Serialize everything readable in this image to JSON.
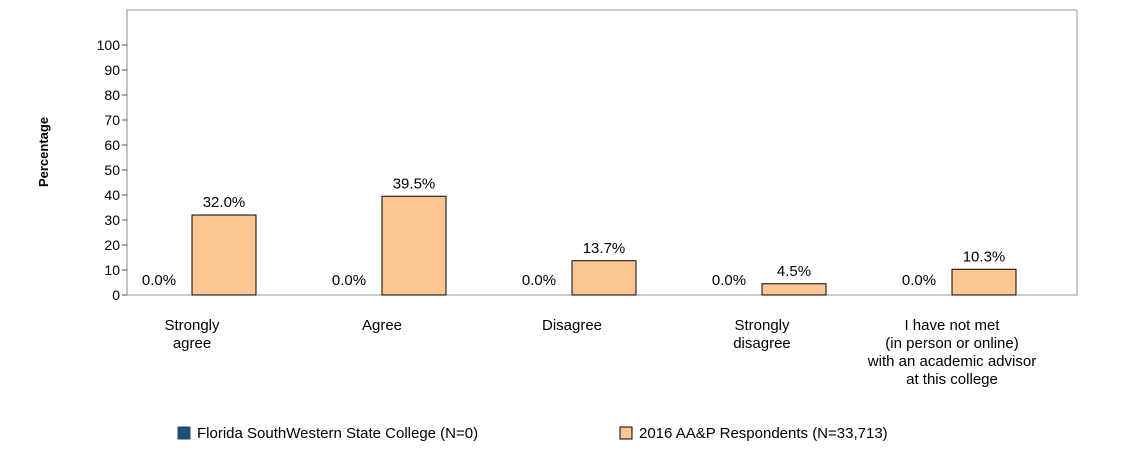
{
  "chart_data": {
    "type": "bar",
    "title": "",
    "ylabel": "Percentage",
    "xlabel": "",
    "ylim": [
      0,
      100
    ],
    "yticks": [
      0,
      10,
      20,
      30,
      40,
      50,
      60,
      70,
      80,
      90,
      100
    ],
    "grid": false,
    "legend_position": "bottom",
    "categories": [
      [
        "Strongly",
        "agree"
      ],
      [
        "Agree"
      ],
      [
        "Disagree"
      ],
      [
        "Strongly",
        "disagree"
      ],
      [
        "I have not met",
        "(in person or online)",
        "with an academic advisor",
        "at this college"
      ]
    ],
    "series": [
      {
        "name": "Florida SouthWestern State College (N=0)",
        "color": "#1f4e79",
        "values": [
          0.0,
          0.0,
          0.0,
          0.0,
          0.0
        ],
        "labels": [
          "0.0%",
          "0.0%",
          "0.0%",
          "0.0%",
          "0.0%"
        ]
      },
      {
        "name": "2016 AA&P Respondents (N=33,713)",
        "color": "#fcc692",
        "values": [
          32.0,
          39.5,
          13.7,
          4.5,
          10.3
        ],
        "labels": [
          "32.0%",
          "39.5%",
          "13.7%",
          "4.5%",
          "10.3%"
        ]
      }
    ]
  }
}
